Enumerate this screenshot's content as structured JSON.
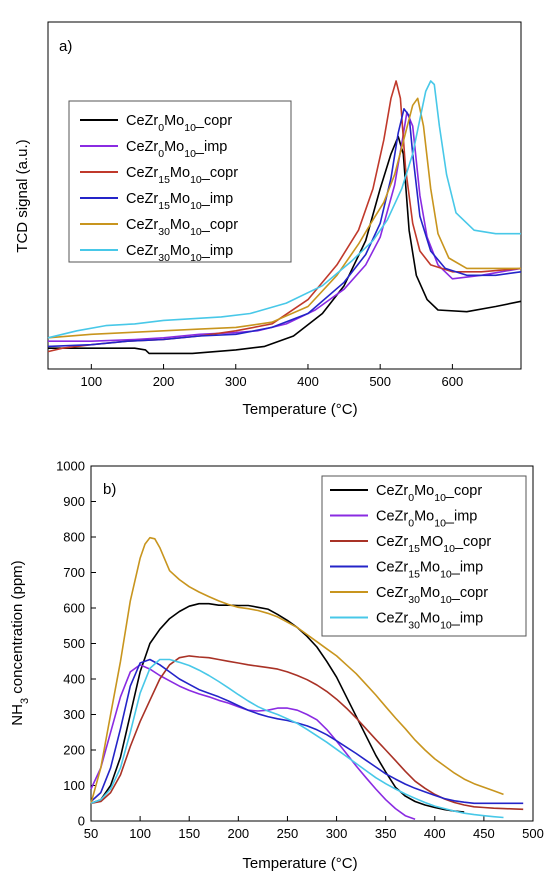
{
  "chart_data": [
    {
      "type": "line",
      "panel_label": "a)",
      "xlabel": "Temperature (°C)",
      "ylabel": "TCD signal (a.u.)",
      "xlim": [
        40,
        695
      ],
      "ylim": [
        0,
        100
      ],
      "xticks": [
        "100",
        "200",
        "300",
        "400",
        "500",
        "600"
      ],
      "xtick_values": [
        100,
        200,
        300,
        400,
        500,
        600
      ],
      "yticks": [],
      "legend_position": "upper-left",
      "series": [
        {
          "legend": {
            "base": "CeZr",
            "sub1": "0",
            "mid": "Mo",
            "sub2": "10",
            "suffix": "_copr"
          },
          "color": "#000000",
          "x": [
            40,
            100,
            160,
            175,
            180,
            240,
            300,
            340,
            380,
            420,
            450,
            480,
            500,
            515,
            525,
            532,
            540,
            550,
            565,
            580,
            620,
            660,
            695
          ],
          "y": [
            6,
            6,
            6,
            5.5,
            4.5,
            4.5,
            5.5,
            6.5,
            9.5,
            16,
            24,
            37,
            52,
            62,
            67,
            62,
            40,
            27,
            20,
            17,
            16.5,
            18,
            19.5
          ]
        },
        {
          "legend": {
            "base": "CeZr",
            "sub1": "0",
            "mid": "Mo",
            "sub2": "10",
            "suffix": "_imp"
          },
          "color": "#8a2be2",
          "x": [
            40,
            100,
            160,
            200,
            250,
            300,
            330,
            370,
            410,
            450,
            480,
            500,
            520,
            530,
            537,
            545,
            555,
            565,
            580,
            600,
            640,
            695
          ],
          "y": [
            8,
            8,
            8.5,
            9,
            10,
            10.5,
            11,
            13,
            17,
            23,
            30,
            38,
            53,
            65,
            74,
            70,
            50,
            38,
            30,
            26,
            27,
            29
          ]
        },
        {
          "legend": {
            "base": "CeZr",
            "sub1": "15",
            "mid": "Mo",
            "sub2": "10",
            "suffix": "_copr"
          },
          "color": "#c0392b",
          "x": [
            40,
            60,
            100,
            150,
            200,
            250,
            300,
            350,
            400,
            440,
            470,
            490,
            505,
            515,
            522,
            528,
            535,
            545,
            555,
            570,
            600,
            640,
            695
          ],
          "y": [
            5,
            6,
            7,
            8,
            8.5,
            9.5,
            11,
            13,
            20,
            30,
            40,
            52,
            66,
            78,
            83,
            78,
            58,
            42,
            34,
            30,
            28,
            28,
            29
          ]
        },
        {
          "legend": {
            "base": "CeZr",
            "sub1": "15",
            "mid": "Mo",
            "sub2": "10",
            "suffix": "_imp"
          },
          "color": "#2424c8",
          "x": [
            40,
            100,
            150,
            200,
            250,
            300,
            350,
            400,
            450,
            480,
            500,
            515,
            525,
            533,
            540,
            545,
            555,
            570,
            590,
            620,
            660,
            695
          ],
          "y": [
            6.5,
            7,
            8,
            8.5,
            9.5,
            10,
            12,
            16,
            25,
            33,
            42,
            55,
            68,
            75,
            73,
            62,
            44,
            34,
            29,
            27,
            27,
            28
          ]
        },
        {
          "legend": {
            "base": "CeZr",
            "sub1": "30",
            "mid": "Mo",
            "sub2": "10",
            "suffix": "_copr"
          },
          "color": "#c8951e",
          "x": [
            40,
            100,
            150,
            200,
            250,
            300,
            350,
            400,
            440,
            470,
            490,
            505,
            520,
            535,
            545,
            552,
            560,
            570,
            580,
            595,
            620,
            660,
            695
          ],
          "y": [
            9,
            10,
            10.5,
            11,
            11.5,
            12,
            13.5,
            18,
            27,
            36,
            43,
            48,
            56,
            68,
            76,
            78,
            70,
            52,
            39,
            32,
            29,
            29,
            29
          ]
        },
        {
          "legend": {
            "base": "CeZr",
            "sub1": "30",
            "mid": "Mo",
            "sub2": "10",
            "suffix": "_imp"
          },
          "color": "#48c8e8",
          "x": [
            40,
            80,
            120,
            160,
            200,
            240,
            280,
            320,
            370,
            420,
            460,
            490,
            510,
            530,
            545,
            555,
            563,
            570,
            575,
            582,
            592,
            605,
            630,
            660,
            695
          ],
          "y": [
            9,
            11,
            12.5,
            13,
            14,
            14.5,
            15,
            16,
            19,
            24,
            31,
            37,
            43,
            52,
            62,
            72,
            80,
            83,
            82,
            70,
            56,
            45,
            40,
            39,
            39
          ]
        }
      ]
    },
    {
      "type": "line",
      "panel_label": "b)",
      "xlabel": "Temperature (°C)",
      "ylabel": {
        "base": "NH",
        "sub": "3",
        "suffix": " concentration (ppm)"
      },
      "xlim": [
        50,
        500
      ],
      "ylim": [
        0,
        1000
      ],
      "xticks": [
        "50",
        "100",
        "150",
        "200",
        "250",
        "300",
        "350",
        "400",
        "450",
        "500"
      ],
      "xtick_values": [
        50,
        100,
        150,
        200,
        250,
        300,
        350,
        400,
        450,
        500
      ],
      "yticks": [
        "0",
        "100",
        "200",
        "300",
        "400",
        "500",
        "600",
        "700",
        "800",
        "900",
        "1000"
      ],
      "ytick_values": [
        0,
        100,
        200,
        300,
        400,
        500,
        600,
        700,
        800,
        900,
        1000
      ],
      "legend_position": "upper-right",
      "series": [
        {
          "legend": {
            "base": "CeZr",
            "sub1": "0",
            "mid": "Mo",
            "sub2": "10",
            "suffix": "_copr"
          },
          "color": "#000000",
          "x": [
            50,
            60,
            70,
            80,
            90,
            100,
            110,
            120,
            130,
            140,
            150,
            160,
            170,
            180,
            190,
            200,
            210,
            220,
            230,
            240,
            250,
            260,
            270,
            280,
            290,
            300,
            310,
            320,
            330,
            340,
            350,
            360,
            370,
            380,
            390,
            400,
            410,
            420,
            430
          ],
          "y": [
            50,
            60,
            100,
            180,
            300,
            420,
            500,
            540,
            570,
            590,
            605,
            612,
            612,
            608,
            608,
            607,
            607,
            602,
            597,
            582,
            565,
            545,
            520,
            490,
            450,
            405,
            350,
            295,
            240,
            185,
            138,
            95,
            70,
            55,
            45,
            38,
            32,
            28,
            25
          ]
        },
        {
          "legend": {
            "base": "CeZr",
            "sub1": "0",
            "mid": "Mo",
            "sub2": "10",
            "suffix": "_imp"
          },
          "color": "#8a2be2",
          "x": [
            50,
            60,
            70,
            80,
            90,
            100,
            110,
            120,
            130,
            140,
            150,
            160,
            170,
            180,
            190,
            200,
            210,
            220,
            230,
            240,
            250,
            260,
            270,
            280,
            290,
            300,
            310,
            320,
            330,
            340,
            350,
            360,
            370,
            380
          ],
          "y": [
            90,
            150,
            250,
            350,
            420,
            440,
            428,
            410,
            395,
            380,
            368,
            358,
            350,
            340,
            332,
            322,
            312,
            310,
            312,
            318,
            318,
            312,
            300,
            285,
            258,
            225,
            190,
            155,
            122,
            90,
            60,
            35,
            15,
            5
          ]
        },
        {
          "legend": {
            "base": "CeZr",
            "sub1": "15",
            "mid": "MO",
            "sub2": "10",
            "suffix": "_copr"
          },
          "color": "#a93226",
          "x": [
            50,
            60,
            70,
            80,
            90,
            100,
            110,
            120,
            130,
            140,
            150,
            160,
            170,
            180,
            190,
            200,
            210,
            220,
            230,
            240,
            250,
            260,
            270,
            280,
            290,
            300,
            310,
            320,
            330,
            340,
            350,
            360,
            370,
            380,
            390,
            400,
            410,
            420,
            430,
            440,
            450,
            460,
            470,
            480,
            490
          ],
          "y": [
            50,
            55,
            80,
            130,
            210,
            280,
            340,
            400,
            440,
            460,
            465,
            462,
            460,
            455,
            450,
            445,
            440,
            436,
            432,
            428,
            420,
            410,
            398,
            383,
            365,
            343,
            318,
            290,
            260,
            230,
            200,
            170,
            140,
            112,
            92,
            75,
            62,
            52,
            45,
            40,
            38,
            36,
            35,
            34,
            33
          ]
        },
        {
          "legend": {
            "base": "CeZr",
            "sub1": "15",
            "mid": "Mo",
            "sub2": "10",
            "suffix": "_imp"
          },
          "color": "#2424c8",
          "x": [
            50,
            60,
            70,
            80,
            90,
            100,
            110,
            120,
            130,
            140,
            150,
            160,
            170,
            180,
            190,
            200,
            210,
            220,
            230,
            240,
            250,
            260,
            270,
            280,
            290,
            300,
            310,
            320,
            330,
            340,
            350,
            360,
            370,
            380,
            390,
            400,
            410,
            420,
            430,
            440,
            450,
            460,
            470,
            480,
            490
          ],
          "y": [
            55,
            80,
            150,
            260,
            380,
            445,
            455,
            440,
            420,
            400,
            385,
            370,
            360,
            350,
            338,
            325,
            312,
            302,
            294,
            288,
            283,
            276,
            268,
            257,
            243,
            226,
            208,
            190,
            171,
            152,
            133,
            118,
            104,
            92,
            82,
            72,
            63,
            57,
            53,
            50,
            50,
            50,
            50,
            50,
            50
          ]
        },
        {
          "legend": {
            "base": "CeZr",
            "sub1": "30",
            "mid": "Mo",
            "sub2": "10",
            "suffix": "_copr"
          },
          "color": "#c8951e",
          "x": [
            50,
            60,
            70,
            80,
            90,
            100,
            105,
            110,
            115,
            120,
            130,
            140,
            150,
            160,
            170,
            180,
            190,
            200,
            210,
            220,
            230,
            240,
            250,
            260,
            270,
            280,
            290,
            300,
            310,
            320,
            330,
            340,
            350,
            360,
            370,
            380,
            390,
            400,
            410,
            420,
            430,
            440,
            450,
            460,
            470
          ],
          "y": [
            50,
            150,
            300,
            450,
            620,
            740,
            780,
            798,
            795,
            770,
            705,
            680,
            660,
            645,
            632,
            620,
            610,
            602,
            598,
            593,
            585,
            575,
            560,
            545,
            525,
            505,
            485,
            465,
            440,
            415,
            385,
            355,
            322,
            290,
            260,
            228,
            200,
            175,
            155,
            135,
            118,
            105,
            95,
            85,
            75
          ]
        },
        {
          "legend": {
            "base": "CeZr",
            "sub1": "30",
            "mid": "Mo",
            "sub2": "10",
            "suffix": "_imp"
          },
          "color": "#48c8e8",
          "x": [
            50,
            60,
            70,
            80,
            90,
            100,
            110,
            120,
            130,
            140,
            150,
            160,
            170,
            180,
            190,
            200,
            210,
            220,
            230,
            240,
            250,
            260,
            270,
            280,
            290,
            300,
            310,
            320,
            330,
            340,
            350,
            360,
            370,
            380,
            390,
            400,
            410,
            420,
            430,
            440,
            450,
            460,
            470
          ],
          "y": [
            50,
            60,
            90,
            150,
            250,
            360,
            430,
            455,
            455,
            447,
            438,
            425,
            410,
            393,
            375,
            356,
            338,
            322,
            310,
            300,
            288,
            275,
            258,
            240,
            222,
            202,
            182,
            162,
            142,
            122,
            105,
            90,
            76,
            64,
            52,
            42,
            35,
            28,
            22,
            18,
            15,
            12,
            10
          ]
        }
      ]
    }
  ]
}
